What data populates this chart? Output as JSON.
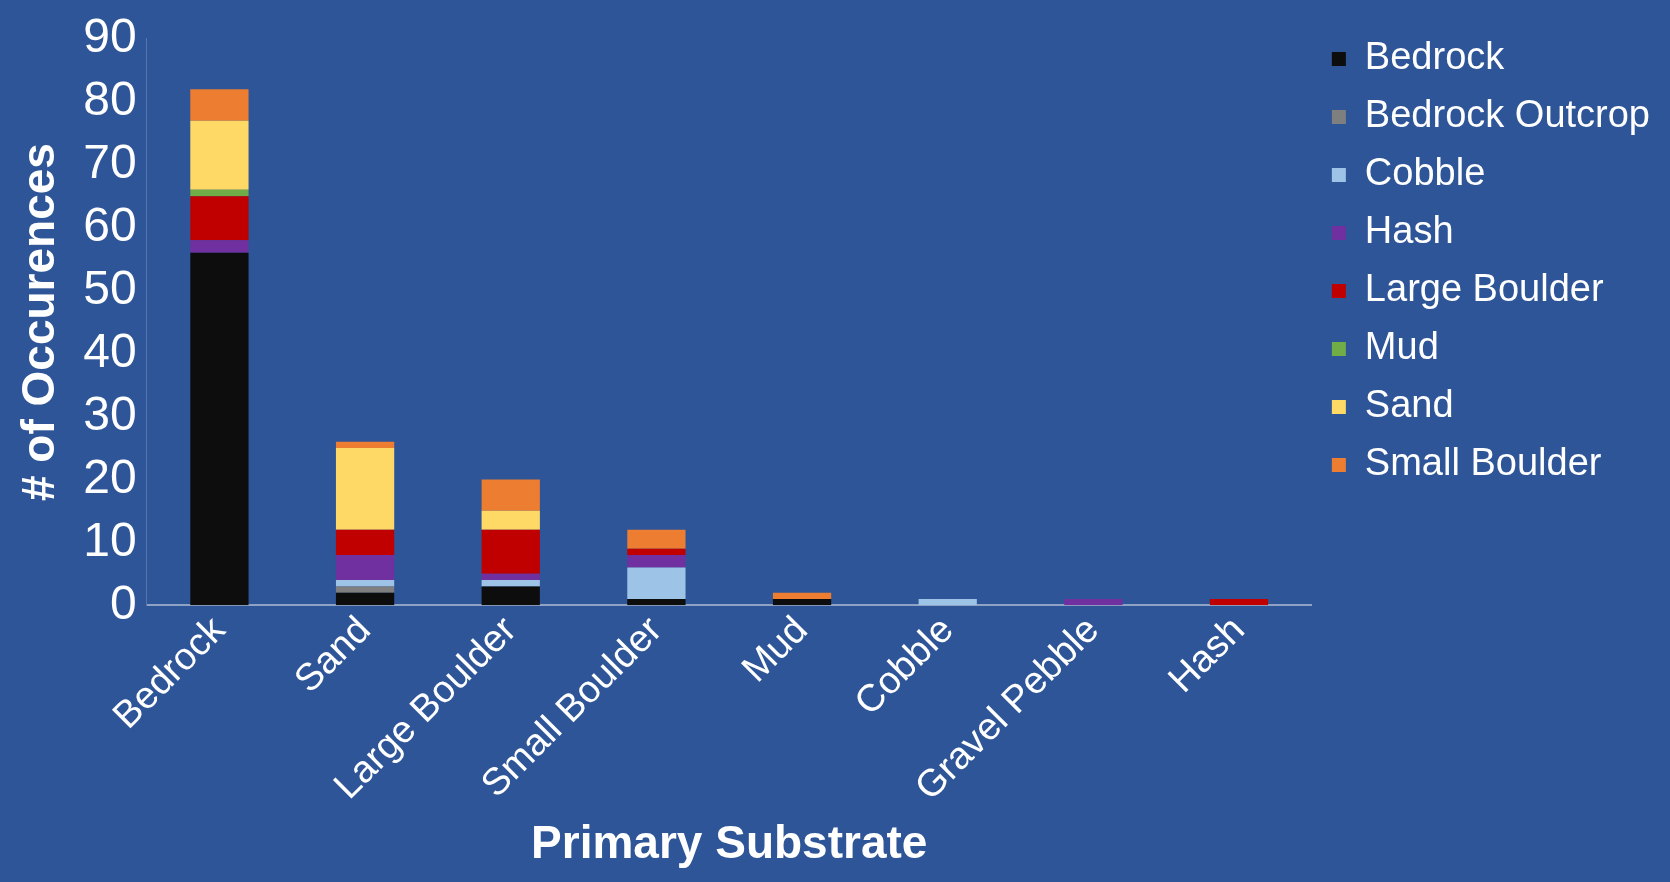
{
  "chart_data": {
    "type": "bar",
    "stacked": true,
    "xlabel": "Primary Substrate",
    "ylabel": "# of Occurences",
    "categories": [
      "Bedrock",
      "Sand",
      "Large Boulder",
      "Small Boulder",
      "Mud",
      "Cobble",
      "Gravel Pebble",
      "Hash"
    ],
    "series": [
      {
        "name": "Bedrock",
        "color": "#0d0d0d",
        "values": [
          56,
          2,
          3,
          1,
          1,
          0,
          0,
          0
        ]
      },
      {
        "name": "Bedrock Outcrop",
        "color": "#7f7f7f",
        "values": [
          0,
          1,
          0,
          0,
          0,
          0,
          0,
          0
        ]
      },
      {
        "name": "Cobble",
        "color": "#9dc3e6",
        "values": [
          0,
          1,
          1,
          5,
          0,
          1,
          0,
          0
        ]
      },
      {
        "name": "Hash",
        "color": "#7030a0",
        "values": [
          2,
          4,
          1,
          2,
          0,
          0,
          1,
          0
        ]
      },
      {
        "name": "Large Boulder",
        "color": "#c00000",
        "values": [
          7,
          4,
          7,
          1,
          0,
          0,
          0,
          1
        ]
      },
      {
        "name": "Mud",
        "color": "#70ad47",
        "values": [
          1,
          0,
          0,
          0,
          0,
          0,
          0,
          0
        ]
      },
      {
        "name": "Sand",
        "color": "#ffd966",
        "values": [
          11,
          13,
          3,
          0,
          0,
          0,
          0,
          0
        ]
      },
      {
        "name": "Small Boulder",
        "color": "#ed7d31",
        "values": [
          5,
          1,
          5,
          3,
          1,
          0,
          0,
          0
        ]
      }
    ],
    "ylim": [
      0,
      90
    ],
    "yticks": [
      0,
      10,
      20,
      30,
      40,
      50,
      60,
      70,
      80,
      90
    ],
    "grid": false,
    "legend": "top right"
  }
}
